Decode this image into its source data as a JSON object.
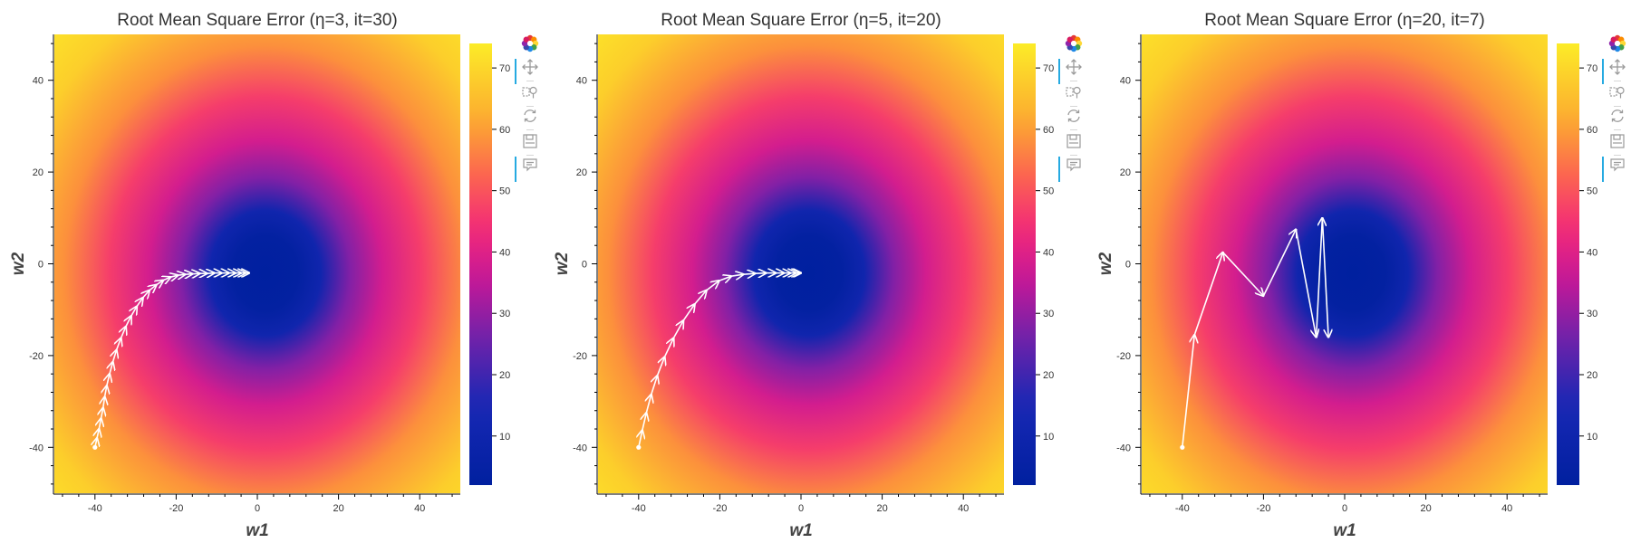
{
  "chart_data": [
    {
      "type": "heatmap",
      "title": "Root Mean Square Error (η=3, it=30)",
      "xlabel": "w1",
      "ylabel": "w2",
      "xlim": [
        -50,
        50
      ],
      "ylim": [
        -50,
        50
      ],
      "x_ticks": [
        "-40",
        "-20",
        "0",
        "20",
        "40"
      ],
      "y_ticks": [
        "-40",
        "-20",
        "0",
        "20",
        "40"
      ],
      "colorbar": {
        "ticks": [
          "10",
          "20",
          "30",
          "40",
          "50",
          "60",
          "70"
        ],
        "range": [
          2,
          74
        ]
      },
      "error_minimum": [
        2,
        -2
      ],
      "trajectory": {
        "x": [
          -40,
          -39.5,
          -39,
          -38.5,
          -38,
          -37.6,
          -37.1,
          -36.4,
          -35.6,
          -34.7,
          -33.6,
          -32.4,
          -31.1,
          -29.7,
          -28.2,
          -26.6,
          -24.9,
          -23.2,
          -21.4,
          -19.6,
          -17.8,
          -16,
          -14.2,
          -12.4,
          -10.6,
          -8.8,
          -7,
          -5.4,
          -4,
          -2.9,
          -2
        ],
        "y": [
          -40,
          -38,
          -36,
          -33.7,
          -31.4,
          -29,
          -26.6,
          -24,
          -21.4,
          -18.8,
          -16.2,
          -13.7,
          -11.4,
          -9.3,
          -7.4,
          -5.8,
          -4.6,
          -3.6,
          -2.9,
          -2.5,
          -2.3,
          -2.2,
          -2.1,
          -2.1,
          -2,
          -2,
          -2,
          -2,
          -2,
          -2,
          -2
        ]
      }
    },
    {
      "type": "heatmap",
      "title": "Root Mean Square Error (η=5, it=20)",
      "xlabel": "w1",
      "ylabel": "w2",
      "xlim": [
        -50,
        50
      ],
      "ylim": [
        -50,
        50
      ],
      "x_ticks": [
        "-40",
        "-20",
        "0",
        "20",
        "40"
      ],
      "y_ticks": [
        "-40",
        "-20",
        "0",
        "20",
        "40"
      ],
      "colorbar": {
        "ticks": [
          "10",
          "20",
          "30",
          "40",
          "50",
          "60",
          "70"
        ],
        "range": [
          2,
          74
        ]
      },
      "error_minimum": [
        2,
        -2
      ],
      "trajectory": {
        "x": [
          -40,
          -39.1,
          -38.1,
          -36.9,
          -35.4,
          -33.6,
          -31.4,
          -29,
          -26.2,
          -23.3,
          -20.2,
          -17.2,
          -14.2,
          -11.3,
          -8.6,
          -6.2,
          -4.2,
          -2.6,
          -1.3,
          -0.4,
          0
        ],
        "y": [
          -40,
          -36.3,
          -32.5,
          -28.5,
          -24.4,
          -20.3,
          -16.2,
          -12.4,
          -8.8,
          -5.8,
          -3.7,
          -2.7,
          -2.3,
          -2.1,
          -2,
          -2,
          -2,
          -2,
          -2,
          -2,
          -2
        ]
      }
    },
    {
      "type": "heatmap",
      "title": "Root Mean Square Error (η=20, it=7)",
      "xlabel": "w1",
      "ylabel": "w2",
      "xlim": [
        -50,
        50
      ],
      "ylim": [
        -50,
        50
      ],
      "x_ticks": [
        "-40",
        "-20",
        "0",
        "20",
        "40"
      ],
      "y_ticks": [
        "-40",
        "-20",
        "0",
        "20",
        "40"
      ],
      "colorbar": {
        "ticks": [
          "10",
          "20",
          "30",
          "40",
          "50",
          "60",
          "70"
        ],
        "range": [
          2,
          74
        ]
      },
      "error_minimum": [
        2,
        -2
      ],
      "trajectory": {
        "x": [
          -40,
          -37,
          -30,
          -20,
          -12,
          -7,
          -5.5,
          -4
        ],
        "y": [
          -40,
          -15.5,
          2.5,
          -7,
          7.5,
          -16,
          10,
          -16
        ]
      }
    }
  ],
  "toolbar": {
    "items": [
      {
        "icon": "bokeh-logo-icon",
        "active": false
      },
      {
        "icon": "pan-icon",
        "active": true
      },
      {
        "icon": "box-zoom-icon",
        "active": false
      },
      {
        "icon": "reset-icon",
        "active": false
      },
      {
        "icon": "save-icon",
        "active": false
      },
      {
        "icon": "hover-icon",
        "active": true
      }
    ]
  },
  "colors": {
    "low": "#00209f",
    "mid": "#e62386",
    "high": "#fcec27",
    "trajectory": "#ffffff"
  }
}
